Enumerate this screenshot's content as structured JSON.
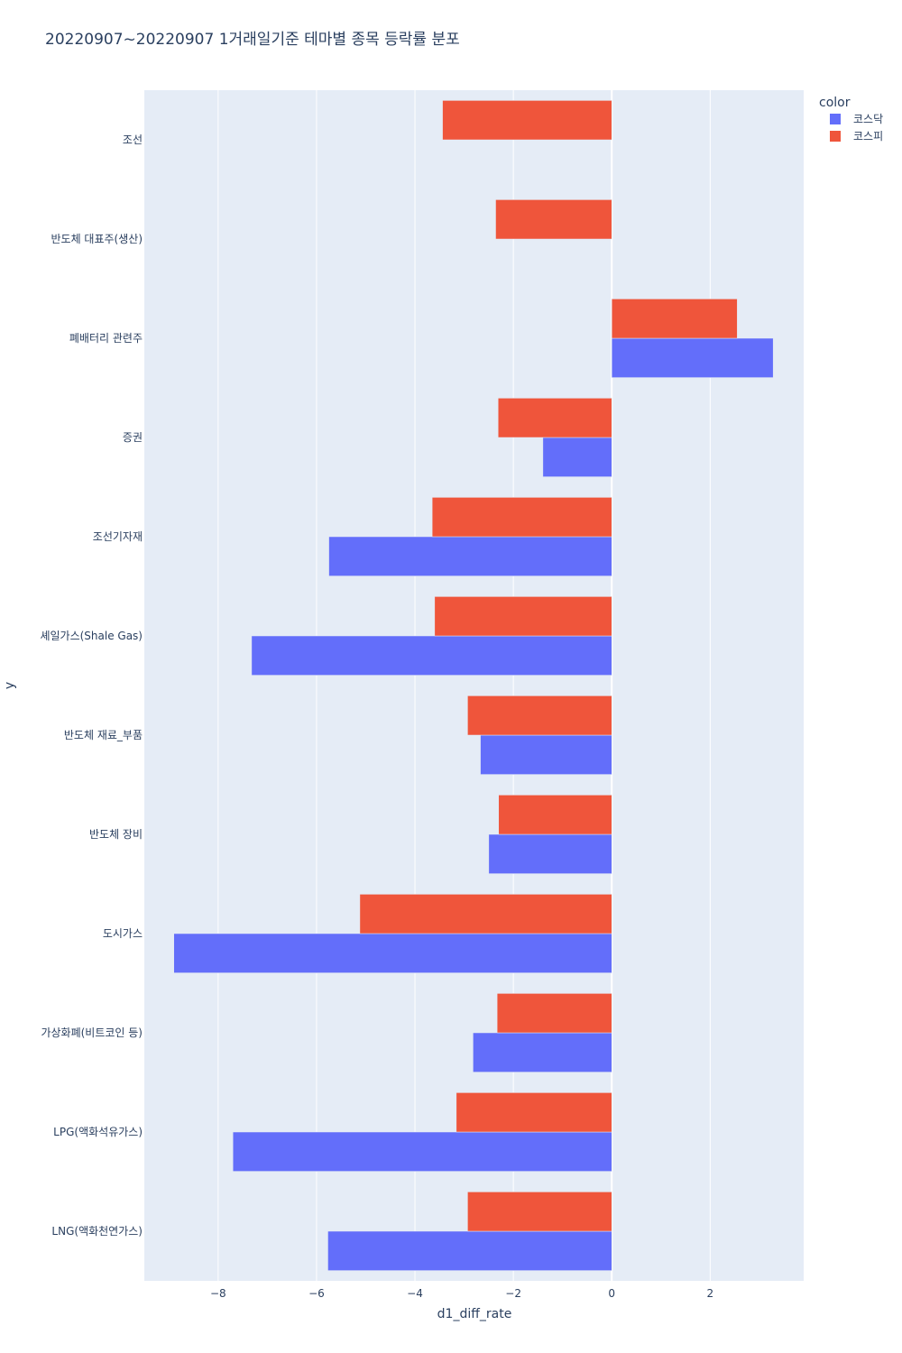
{
  "chart_data": {
    "type": "bar",
    "orientation": "horizontal",
    "barmode": "group",
    "title": "20220907~20220907 1거래일기준 테마별 종목 등락률 분포",
    "xlabel": "d1_diff_rate",
    "ylabel": "y",
    "xlim": [
      -9.5,
      3.9
    ],
    "xticks": [
      -8,
      -6,
      -4,
      -2,
      0,
      2
    ],
    "xtick_labels": [
      "−8",
      "−6",
      "−4",
      "−2",
      "0",
      "2"
    ],
    "grid": true,
    "legend": {
      "title": "color",
      "position": "top-right"
    },
    "categories": [
      "조선",
      "반도체 대표주(생산)",
      "폐배터리 관련주",
      "증권",
      "조선기자재",
      "셰일가스(Shale Gas)",
      "반도체 재료_부품",
      "반도체 장비",
      "도시가스",
      "가상화폐(비트코인 등)",
      "LPG(액화석유가스)",
      "LNG(액화천연가스)"
    ],
    "series": [
      {
        "name": "코스닥",
        "color": "#636efa",
        "values": [
          null,
          null,
          3.28,
          -1.4,
          -5.75,
          -7.32,
          -2.67,
          -2.5,
          -8.9,
          -2.82,
          -7.7,
          -5.77
        ]
      },
      {
        "name": "코스피",
        "color": "#ef553b",
        "values": [
          -3.44,
          -2.36,
          2.55,
          -2.31,
          -3.65,
          -3.6,
          -2.93,
          -2.3,
          -5.12,
          -2.33,
          -3.16,
          -2.93
        ]
      }
    ]
  }
}
